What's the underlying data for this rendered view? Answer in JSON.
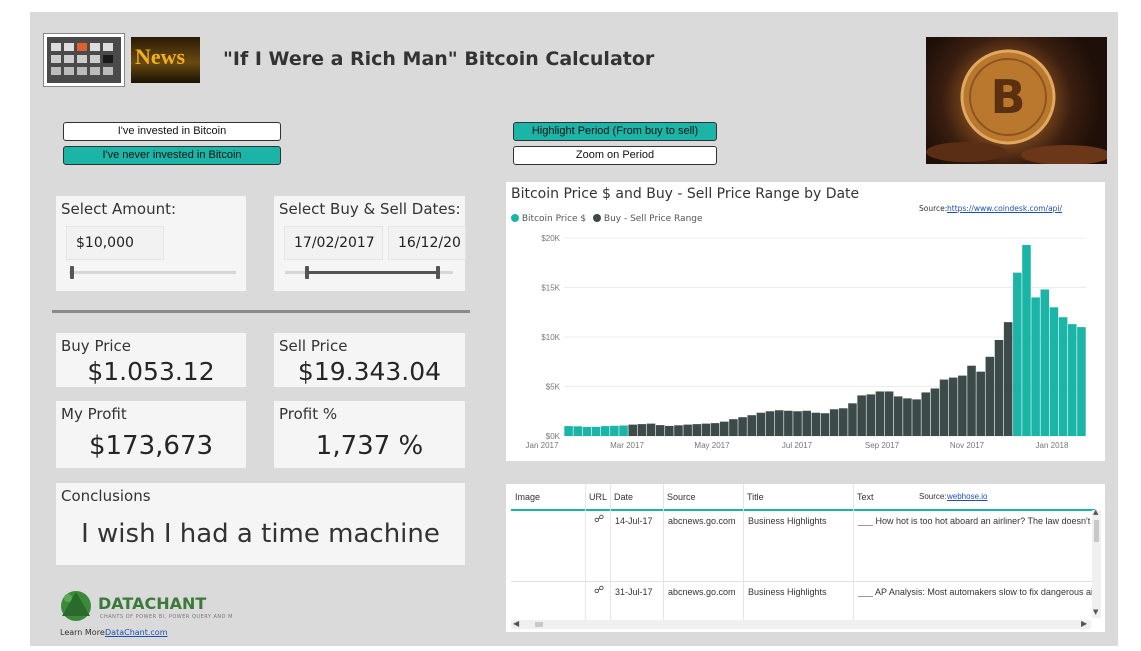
{
  "header": {
    "title": "\"If I Were a Rich Man\" Bitcoin Calculator",
    "news_logo_text": "News"
  },
  "toggles": {
    "invested": "I've invested in Bitcoin",
    "never_invested": "I've never invested in Bitcoin",
    "highlight_period": "Highlight Period (From buy to sell)",
    "zoom_period": "Zoom on Period"
  },
  "amount_card": {
    "title": "Select Amount:",
    "value": "$10,000",
    "slider_level": 0.02
  },
  "dates_card": {
    "title": "Select Buy & Sell Dates:",
    "buy_date": "17/02/2017",
    "sell_date": "16/12/20",
    "slider_start": 0.13,
    "slider_end": 0.91
  },
  "kpis": {
    "buy_price_label": "Buy Price",
    "buy_price": "$1.053.12",
    "sell_price_label": "Sell Price",
    "sell_price": "$19.343.04",
    "profit_label": "My Profit",
    "profit": "$173,673",
    "profit_pct_label": "Profit %",
    "profit_pct": "1,737 %"
  },
  "conclusions": {
    "title": "Conclusions",
    "text": "I wish I had a time machine"
  },
  "footer": {
    "brand": "DATACHANT",
    "tagline": "CHANTS OF POWER BI, POWER QUERY AND M",
    "learn_more": "Learn More:",
    "link": "DataChant.com"
  },
  "chart_data": {
    "type": "bar",
    "title": "Bitcoin Price $ and Buy - Sell Price Range by Date",
    "source_label": "Source:",
    "source_link": "https://www.coindesk.com/api/",
    "series": [
      {
        "name": "Bitcoin Price $",
        "color": "#1bb5a7"
      },
      {
        "name": "Buy - Sell Price Range",
        "color": "#3d4a4a"
      }
    ],
    "y_ticks": [
      "$0K",
      "$5K",
      "$10K",
      "$15K",
      "$20K"
    ],
    "ylim": [
      0,
      20000
    ],
    "x_ticks": [
      "Jan 2017",
      "Mar 2017",
      "May 2017",
      "Jul 2017",
      "Sep 2017",
      "Nov 2017",
      "Jan 2018"
    ],
    "buy_index": 7,
    "sell_index": 49,
    "x": [
      "2017-01-01",
      "2017-01-08",
      "2017-01-15",
      "2017-01-22",
      "2017-01-29",
      "2017-02-05",
      "2017-02-12",
      "2017-02-19",
      "2017-02-26",
      "2017-03-05",
      "2017-03-12",
      "2017-03-19",
      "2017-03-26",
      "2017-04-02",
      "2017-04-09",
      "2017-04-16",
      "2017-04-23",
      "2017-04-30",
      "2017-05-07",
      "2017-05-14",
      "2017-05-21",
      "2017-05-28",
      "2017-06-04",
      "2017-06-11",
      "2017-06-18",
      "2017-06-25",
      "2017-07-02",
      "2017-07-09",
      "2017-07-16",
      "2017-07-23",
      "2017-07-30",
      "2017-08-06",
      "2017-08-13",
      "2017-08-20",
      "2017-08-27",
      "2017-09-03",
      "2017-09-10",
      "2017-09-17",
      "2017-09-24",
      "2017-10-01",
      "2017-10-08",
      "2017-10-15",
      "2017-10-22",
      "2017-10-29",
      "2017-11-05",
      "2017-11-12",
      "2017-11-19",
      "2017-11-26",
      "2017-12-03",
      "2017-12-10",
      "2017-12-17",
      "2017-12-24",
      "2017-12-31",
      "2018-01-07",
      "2018-01-14",
      "2018-01-21",
      "2018-01-28"
    ],
    "values": [
      1000,
      980,
      910,
      920,
      1000,
      1030,
      1060,
      1150,
      1200,
      1250,
      1100,
      1020,
      1080,
      1150,
      1200,
      1250,
      1300,
      1450,
      1700,
      1900,
      2100,
      2350,
      2500,
      2600,
      2550,
      2500,
      2550,
      2350,
      2300,
      2700,
      2800,
      3300,
      4100,
      4200,
      4500,
      4500,
      4000,
      3800,
      3700,
      4400,
      4800,
      5700,
      5900,
      6100,
      7100,
      6500,
      8000,
      9700,
      11500,
      16500,
      19300,
      14000,
      14800,
      13000,
      12000,
      11300,
      11000
    ]
  },
  "news_table": {
    "columns": [
      "Image",
      "URL",
      "Date",
      "Source",
      "Title",
      "Text"
    ],
    "source_label": "Source:",
    "source_link": "webhose.io",
    "rows": [
      {
        "date": "14-Jul-17",
        "source": "abcnews.go.com",
        "title": "Business Highlights",
        "text": "___ How hot is too hot aboard an airliner? The law doesn't s"
      },
      {
        "date": "31-Jul-17",
        "source": "abcnews.go.com",
        "title": "Business Highlights",
        "text": "___ AP Analysis: Most automakers slow to fix dangerous air"
      }
    ]
  }
}
